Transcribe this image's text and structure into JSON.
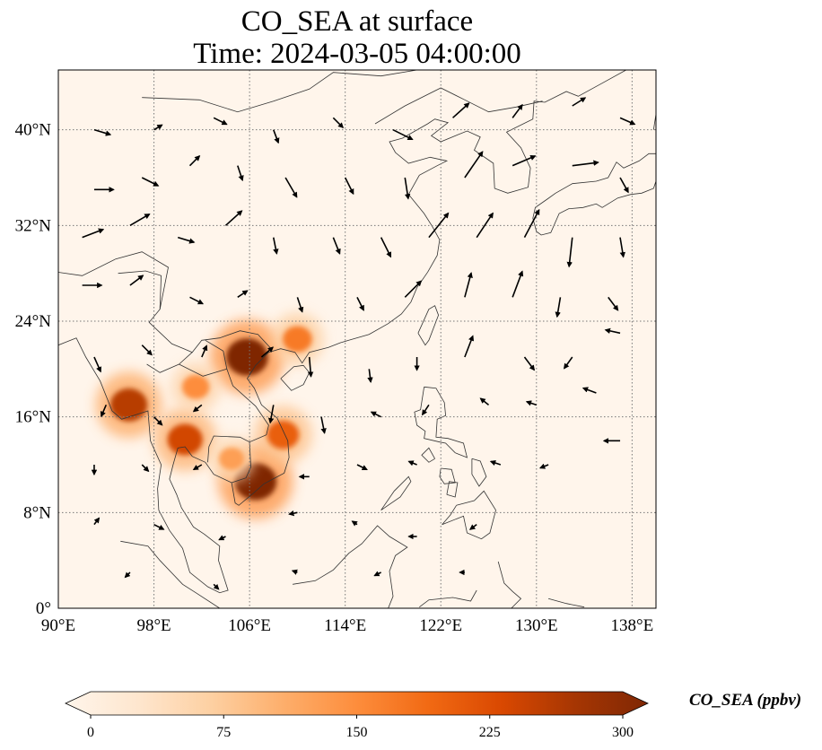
{
  "title": {
    "line1": "CO_SEA at surface",
    "line2": "Time: 2024-03-05 04:00:00"
  },
  "map": {
    "extent": {
      "lon": [
        90,
        140
      ],
      "lat": [
        0,
        45
      ]
    },
    "lon_ticks": [
      {
        "value": 90,
        "label": "90°E"
      },
      {
        "value": 98,
        "label": "98°E"
      },
      {
        "value": 106,
        "label": "106°E"
      },
      {
        "value": 114,
        "label": "114°E"
      },
      {
        "value": 122,
        "label": "122°E"
      },
      {
        "value": 130,
        "label": "130°E"
      },
      {
        "value": 138,
        "label": "138°E"
      }
    ],
    "lat_ticks": [
      {
        "value": 0,
        "label": "0°"
      },
      {
        "value": 8,
        "label": "8°N"
      },
      {
        "value": 16,
        "label": "16°N"
      },
      {
        "value": 24,
        "label": "24°N"
      },
      {
        "value": 32,
        "label": "32°N"
      },
      {
        "value": 40,
        "label": "40°N"
      }
    ],
    "gridlines": true,
    "background_color": "#fff5eb",
    "hotspots": [
      {
        "region": "Red River Delta / Hanoi",
        "lon": 105.8,
        "lat": 21.0,
        "ppbv": 300
      },
      {
        "region": "Mekong Delta / Ho Chi Minh City",
        "lon": 106.5,
        "lat": 10.6,
        "ppbv": 300
      },
      {
        "region": "Central Vietnam coast",
        "lon": 108.8,
        "lat": 14.5,
        "ppbv": 200
      },
      {
        "region": "Northern Thailand / Myanmar border",
        "lon": 95.9,
        "lat": 17.0,
        "ppbv": 250
      },
      {
        "region": "Bangkok",
        "lon": 100.6,
        "lat": 14.1,
        "ppbv": 230
      },
      {
        "region": "Laos / northern Thailand",
        "lon": 101.5,
        "lat": 18.5,
        "ppbv": 150
      },
      {
        "region": "Cambodia",
        "lon": 104.5,
        "lat": 12.5,
        "ppbv": 130
      },
      {
        "region": "Guangxi / Guangdong",
        "lon": 110.0,
        "lat": 22.5,
        "ppbv": 170
      }
    ],
    "wind_vectors": [
      {
        "lon": 93,
        "lat": 40,
        "u": 1,
        "v": -0.3
      },
      {
        "lon": 98,
        "lat": 40,
        "u": 0.5,
        "v": 0.3
      },
      {
        "lon": 103,
        "lat": 41,
        "u": 0.8,
        "v": -0.4
      },
      {
        "lon": 108,
        "lat": 40,
        "u": 0.3,
        "v": -0.8
      },
      {
        "lon": 113,
        "lat": 41,
        "u": 0.6,
        "v": -0.6
      },
      {
        "lon": 118,
        "lat": 40,
        "u": 1.2,
        "v": -0.6
      },
      {
        "lon": 123,
        "lat": 41,
        "u": 1.0,
        "v": 0.9
      },
      {
        "lon": 128,
        "lat": 41,
        "u": 0.6,
        "v": 0.8
      },
      {
        "lon": 133,
        "lat": 42,
        "u": 0.8,
        "v": 0.5
      },
      {
        "lon": 137,
        "lat": 41,
        "u": 0.9,
        "v": -0.4
      },
      {
        "lon": 93,
        "lat": 35,
        "u": 1.2,
        "v": 0.0
      },
      {
        "lon": 97,
        "lat": 36,
        "u": 1.0,
        "v": -0.5
      },
      {
        "lon": 101,
        "lat": 37,
        "u": 0.6,
        "v": 0.6
      },
      {
        "lon": 105,
        "lat": 37,
        "u": 0.3,
        "v": -0.9
      },
      {
        "lon": 109,
        "lat": 36,
        "u": 0.7,
        "v": -1.2
      },
      {
        "lon": 114,
        "lat": 36,
        "u": 0.5,
        "v": -1.0
      },
      {
        "lon": 119,
        "lat": 36,
        "u": 0.2,
        "v": -1.3
      },
      {
        "lon": 124,
        "lat": 36,
        "u": 1.1,
        "v": 1.6
      },
      {
        "lon": 128,
        "lat": 37,
        "u": 1.4,
        "v": 0.6
      },
      {
        "lon": 133,
        "lat": 37,
        "u": 1.6,
        "v": 0.2
      },
      {
        "lon": 137,
        "lat": 36,
        "u": 0.5,
        "v": -0.9
      },
      {
        "lon": 92,
        "lat": 31,
        "u": 1.3,
        "v": 0.5
      },
      {
        "lon": 96,
        "lat": 32,
        "u": 1.2,
        "v": 0.7
      },
      {
        "lon": 100,
        "lat": 31,
        "u": 1.0,
        "v": -0.3
      },
      {
        "lon": 104,
        "lat": 32,
        "u": 1.0,
        "v": 0.9
      },
      {
        "lon": 108,
        "lat": 31,
        "u": 0.2,
        "v": -1.0
      },
      {
        "lon": 113,
        "lat": 31,
        "u": 0.4,
        "v": -1.0
      },
      {
        "lon": 117,
        "lat": 31,
        "u": 0.6,
        "v": -1.2
      },
      {
        "lon": 121,
        "lat": 31,
        "u": 1.2,
        "v": 1.5
      },
      {
        "lon": 125,
        "lat": 31,
        "u": 1.0,
        "v": 1.5
      },
      {
        "lon": 129,
        "lat": 31,
        "u": 0.9,
        "v": 1.7
      },
      {
        "lon": 133,
        "lat": 31,
        "u": -0.2,
        "v": -1.8
      },
      {
        "lon": 137,
        "lat": 31,
        "u": 0.2,
        "v": -1.2
      },
      {
        "lon": 92,
        "lat": 27,
        "u": 1.2,
        "v": 0.0
      },
      {
        "lon": 96,
        "lat": 27,
        "u": 0.8,
        "v": 0.6
      },
      {
        "lon": 101,
        "lat": 26,
        "u": 0.8,
        "v": -0.4
      },
      {
        "lon": 105,
        "lat": 26,
        "u": 0.6,
        "v": 0.4
      },
      {
        "lon": 110,
        "lat": 26,
        "u": 0.3,
        "v": -0.9
      },
      {
        "lon": 115,
        "lat": 26,
        "u": 0.4,
        "v": -0.8
      },
      {
        "lon": 119,
        "lat": 26,
        "u": 1.0,
        "v": 1.0
      },
      {
        "lon": 124,
        "lat": 26,
        "u": 0.4,
        "v": 1.5
      },
      {
        "lon": 128,
        "lat": 26,
        "u": 0.6,
        "v": 1.6
      },
      {
        "lon": 132,
        "lat": 26,
        "u": -0.2,
        "v": -1.2
      },
      {
        "lon": 136,
        "lat": 26,
        "u": 0.6,
        "v": -0.8
      },
      {
        "lon": 93,
        "lat": 21,
        "u": 0.4,
        "v": -0.9
      },
      {
        "lon": 97,
        "lat": 22,
        "u": 0.6,
        "v": -0.6
      },
      {
        "lon": 102,
        "lat": 21,
        "u": 0.3,
        "v": 0.7
      },
      {
        "lon": 107,
        "lat": 21,
        "u": 0.7,
        "v": 0.6
      },
      {
        "lon": 111,
        "lat": 21,
        "u": 0.1,
        "v": -1.2
      },
      {
        "lon": 116,
        "lat": 20,
        "u": 0.1,
        "v": -0.8
      },
      {
        "lon": 120,
        "lat": 21,
        "u": 0.0,
        "v": -0.8
      },
      {
        "lon": 124,
        "lat": 21,
        "u": 0.5,
        "v": 1.3
      },
      {
        "lon": 129,
        "lat": 21,
        "u": 0.6,
        "v": -0.8
      },
      {
        "lon": 133,
        "lat": 21,
        "u": -0.5,
        "v": -0.7
      },
      {
        "lon": 137,
        "lat": 23,
        "u": -0.9,
        "v": 0.2
      },
      {
        "lon": 94,
        "lat": 17,
        "u": -0.3,
        "v": -0.7
      },
      {
        "lon": 98,
        "lat": 16,
        "u": 0.5,
        "v": -0.5
      },
      {
        "lon": 102,
        "lat": 17,
        "u": -0.5,
        "v": -0.4
      },
      {
        "lon": 108,
        "lat": 17,
        "u": -0.2,
        "v": -1.1
      },
      {
        "lon": 112,
        "lat": 16,
        "u": 0.2,
        "v": -1.0
      },
      {
        "lon": 117,
        "lat": 16,
        "u": -0.6,
        "v": 0.3
      },
      {
        "lon": 121,
        "lat": 17,
        "u": -0.4,
        "v": -0.6
      },
      {
        "lon": 126,
        "lat": 17,
        "u": -0.5,
        "v": 0.4
      },
      {
        "lon": 130,
        "lat": 17,
        "u": -0.6,
        "v": 0.2
      },
      {
        "lon": 135,
        "lat": 18,
        "u": -0.8,
        "v": 0.3
      },
      {
        "lon": 93,
        "lat": 12,
        "u": 0.0,
        "v": -0.6
      },
      {
        "lon": 97,
        "lat": 12,
        "u": 0.4,
        "v": -0.4
      },
      {
        "lon": 102,
        "lat": 12,
        "u": -0.5,
        "v": -0.3
      },
      {
        "lon": 111,
        "lat": 11,
        "u": -0.6,
        "v": 0.0
      },
      {
        "lon": 115,
        "lat": 12,
        "u": 0.6,
        "v": -0.3
      },
      {
        "lon": 120,
        "lat": 12,
        "u": -0.5,
        "v": 0.2
      },
      {
        "lon": 127,
        "lat": 12,
        "u": -0.6,
        "v": 0.2
      },
      {
        "lon": 131,
        "lat": 12,
        "u": -0.5,
        "v": -0.2
      },
      {
        "lon": 137,
        "lat": 14,
        "u": -1.0,
        "v": 0.0
      },
      {
        "lon": 93,
        "lat": 7,
        "u": 0.3,
        "v": 0.4
      },
      {
        "lon": 98,
        "lat": 7,
        "u": 0.6,
        "v": -0.3
      },
      {
        "lon": 104,
        "lat": 6,
        "u": -0.4,
        "v": -0.2
      },
      {
        "lon": 110,
        "lat": 8,
        "u": -0.5,
        "v": -0.1
      },
      {
        "lon": 115,
        "lat": 7,
        "u": -0.3,
        "v": 0.2
      },
      {
        "lon": 120,
        "lat": 6,
        "u": -0.5,
        "v": 0.0
      },
      {
        "lon": 125,
        "lat": 7,
        "u": -0.4,
        "v": -0.3
      },
      {
        "lon": 96,
        "lat": 3,
        "u": -0.3,
        "v": -0.3
      },
      {
        "lon": 103,
        "lat": 2,
        "u": 0.3,
        "v": -0.3
      },
      {
        "lon": 110,
        "lat": 3,
        "u": -0.3,
        "v": 0.1
      },
      {
        "lon": 117,
        "lat": 3,
        "u": -0.4,
        "v": -0.2
      },
      {
        "lon": 124,
        "lat": 3,
        "u": -0.3,
        "v": 0.0
      }
    ]
  },
  "colorbar": {
    "label": "CO_SEA (ppbv)",
    "min": 0,
    "max": 300,
    "extend": "both",
    "ticks": [
      {
        "value": 0,
        "label": "0"
      },
      {
        "value": 75,
        "label": "75"
      },
      {
        "value": 150,
        "label": "150"
      },
      {
        "value": 225,
        "label": "225"
      },
      {
        "value": 300,
        "label": "300"
      }
    ],
    "colors": [
      "#fff5eb",
      "#fee6ce",
      "#fdd0a2",
      "#fdae6b",
      "#fd8d3c",
      "#f16913",
      "#d94801",
      "#a63603",
      "#7f2704"
    ]
  }
}
